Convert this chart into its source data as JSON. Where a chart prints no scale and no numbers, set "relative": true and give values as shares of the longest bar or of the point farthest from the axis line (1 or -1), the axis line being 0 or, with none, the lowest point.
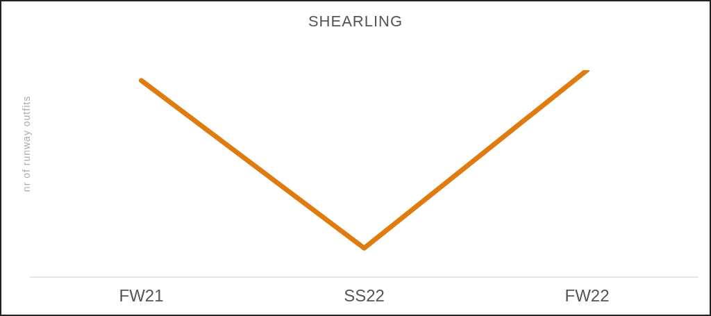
{
  "chart_data": {
    "type": "line",
    "title": "SHEARLING",
    "ylabel": "nr of runway outfits",
    "categories": [
      "FW21",
      "SS22",
      "FW22"
    ],
    "relative": true,
    "series": [
      {
        "color": "#e07b0f",
        "values": [
          0.95,
          0.14,
          1
        ]
      }
    ],
    "grid": false,
    "legend": false,
    "marker": "none",
    "line_style": "solid"
  }
}
